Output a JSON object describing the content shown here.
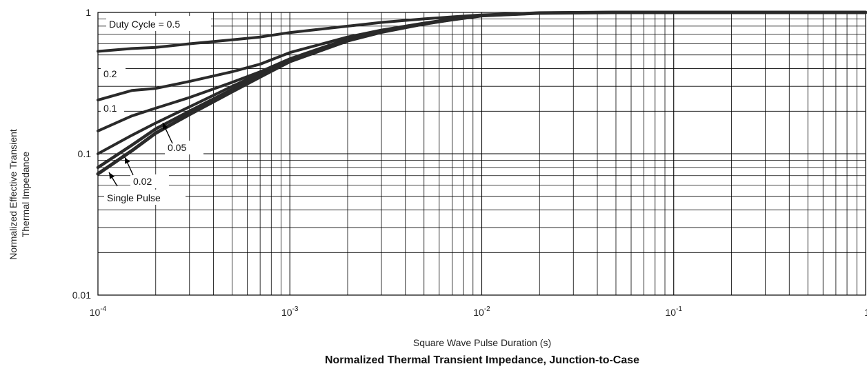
{
  "chart_data": {
    "type": "line",
    "title": "Normalized Thermal Transient Impedance, Junction-to-Case",
    "xlabel": "Square Wave Pulse Duration (s)",
    "ylabel": "Normalized Effective Transient Thermal Impedance",
    "ylabel_lines": [
      "Normalized Effective Transient",
      "Thermal Impedance"
    ],
    "x_scale": "log",
    "y_scale": "log",
    "xlim": [
      0.0001,
      1
    ],
    "ylim": [
      0.01,
      1
    ],
    "grid": true,
    "x_ticks": [
      {
        "value": 0.0001,
        "base": "10",
        "exp": "-4"
      },
      {
        "value": 0.001,
        "base": "10",
        "exp": "-3"
      },
      {
        "value": 0.01,
        "base": "10",
        "exp": "-2"
      },
      {
        "value": 0.1,
        "base": "10",
        "exp": "-1"
      },
      {
        "value": 1,
        "base": "1",
        "exp": ""
      }
    ],
    "y_ticks": [
      {
        "value": 0.01,
        "label": "0.01"
      },
      {
        "value": 0.1,
        "label": "0.1"
      },
      {
        "value": 1,
        "label": "1"
      }
    ],
    "series": [
      {
        "name": "Duty Cycle = 0.5",
        "x": [
          0.0001,
          0.00015,
          0.0002,
          0.0003,
          0.0005,
          0.0007,
          0.001,
          0.002,
          0.003,
          0.005,
          0.007,
          0.01,
          0.02,
          0.05,
          0.1,
          1
        ],
        "y": [
          0.53,
          0.555,
          0.565,
          0.6,
          0.64,
          0.67,
          0.72,
          0.8,
          0.85,
          0.9,
          0.93,
          0.96,
          0.99,
          1.0,
          1.0,
          1.0
        ]
      },
      {
        "name": "0.2",
        "x": [
          0.0001,
          0.00015,
          0.0002,
          0.0003,
          0.0005,
          0.0007,
          0.001,
          0.002,
          0.003,
          0.005,
          0.007,
          0.01,
          0.02,
          0.05,
          0.1,
          1
        ],
        "y": [
          0.24,
          0.28,
          0.29,
          0.325,
          0.38,
          0.43,
          0.52,
          0.67,
          0.75,
          0.84,
          0.9,
          0.95,
          0.99,
          1.0,
          1.0,
          1.0
        ]
      },
      {
        "name": "0.1",
        "x": [
          0.0001,
          0.00015,
          0.0002,
          0.0003,
          0.0005,
          0.0007,
          0.001,
          0.002,
          0.003,
          0.005,
          0.007,
          0.01,
          0.02,
          0.05,
          0.1,
          1
        ],
        "y": [
          0.145,
          0.185,
          0.21,
          0.25,
          0.32,
          0.38,
          0.47,
          0.65,
          0.74,
          0.83,
          0.89,
          0.95,
          0.99,
          1.0,
          1.0,
          1.0
        ]
      },
      {
        "name": "0.05",
        "x": [
          0.0001,
          0.00015,
          0.0002,
          0.0003,
          0.0005,
          0.0007,
          0.001,
          0.002,
          0.003,
          0.005,
          0.007,
          0.01,
          0.02,
          0.05,
          0.1,
          1
        ],
        "y": [
          0.1,
          0.135,
          0.165,
          0.215,
          0.3,
          0.37,
          0.46,
          0.64,
          0.73,
          0.83,
          0.89,
          0.95,
          0.99,
          1.0,
          1.0,
          1.0
        ]
      },
      {
        "name": "0.02",
        "x": [
          0.0001,
          0.00015,
          0.0002,
          0.0003,
          0.0005,
          0.0007,
          0.001,
          0.002,
          0.003,
          0.005,
          0.007,
          0.01,
          0.02,
          0.05,
          0.1,
          1
        ],
        "y": [
          0.08,
          0.115,
          0.15,
          0.2,
          0.285,
          0.36,
          0.455,
          0.635,
          0.73,
          0.83,
          0.89,
          0.95,
          0.99,
          1.0,
          1.0,
          1.0
        ]
      },
      {
        "name": "Single Pulse",
        "x": [
          0.0001,
          0.00015,
          0.0002,
          0.0003,
          0.0005,
          0.0007,
          0.001,
          0.002,
          0.003,
          0.005,
          0.007,
          0.01,
          0.02,
          0.05,
          0.1,
          1
        ],
        "y": [
          0.072,
          0.105,
          0.14,
          0.19,
          0.275,
          0.35,
          0.45,
          0.63,
          0.725,
          0.83,
          0.89,
          0.95,
          0.99,
          1.0,
          1.0,
          1.0
        ]
      }
    ],
    "annotations": [
      {
        "text": "Duty Cycle = 0.5",
        "series": "Duty Cycle = 0.5"
      },
      {
        "text": "0.2",
        "series": "0.2"
      },
      {
        "text": "0.1",
        "series": "0.1"
      },
      {
        "text": "0.05",
        "series": "0.05"
      },
      {
        "text": "0.02",
        "series": "0.02"
      },
      {
        "text": "Single Pulse",
        "series": "Single Pulse"
      }
    ]
  }
}
